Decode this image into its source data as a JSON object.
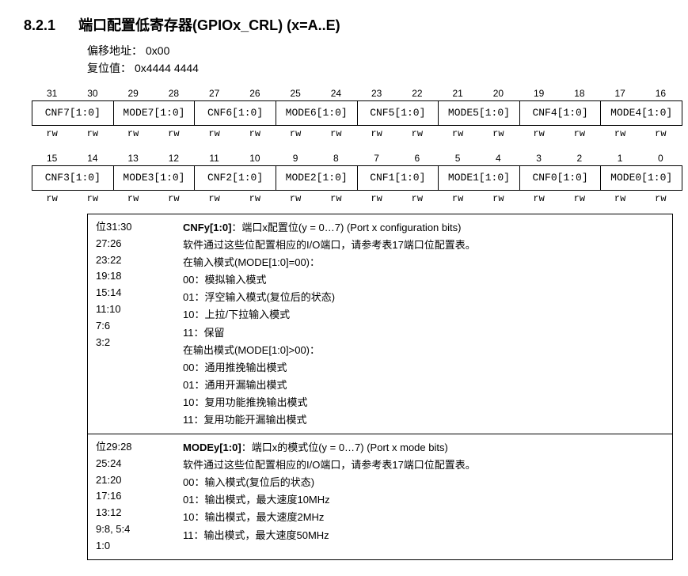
{
  "heading": {
    "number": "8.2.1",
    "title": "端口配置低寄存器(GPIOx_CRL) (x=A..E)"
  },
  "meta": {
    "offset_label": "偏移地址：",
    "offset_value": "0x00",
    "reset_label": "复位值：",
    "reset_value": "0x4444 4444"
  },
  "bitmap_high": {
    "bits": [
      "31",
      "30",
      "29",
      "28",
      "27",
      "26",
      "25",
      "24",
      "23",
      "22",
      "21",
      "20",
      "19",
      "18",
      "17",
      "16"
    ],
    "cells": [
      "CNF7[1:0]",
      "MODE7[1:0]",
      "CNF6[1:0]",
      "MODE6[1:0]",
      "CNF5[1:0]",
      "MODE5[1:0]",
      "CNF4[1:0]",
      "MODE4[1:0]"
    ],
    "rw": [
      "rw",
      "rw",
      "rw",
      "rw",
      "rw",
      "rw",
      "rw",
      "rw",
      "rw",
      "rw",
      "rw",
      "rw",
      "rw",
      "rw",
      "rw",
      "rw"
    ]
  },
  "bitmap_low": {
    "bits": [
      "15",
      "14",
      "13",
      "12",
      "11",
      "10",
      "9",
      "8",
      "7",
      "6",
      "5",
      "4",
      "3",
      "2",
      "1",
      "0"
    ],
    "cells": [
      "CNF3[1:0]",
      "MODE3[1:0]",
      "CNF2[1:0]",
      "MODE2[1:0]",
      "CNF1[1:0]",
      "MODE1[1:0]",
      "CNF0[1:0]",
      "MODE0[1:0]"
    ],
    "rw": [
      "rw",
      "rw",
      "rw",
      "rw",
      "rw",
      "rw",
      "rw",
      "rw",
      "rw",
      "rw",
      "rw",
      "rw",
      "rw",
      "rw",
      "rw",
      "rw"
    ]
  },
  "descriptions": [
    {
      "bits": [
        "位31:30",
        "27:26",
        "23:22",
        "19:18",
        "15:14",
        "11:10",
        "7:6",
        "3:2"
      ],
      "field": "CNFy[1:0]",
      "field_suffix": "：端口x配置位(y = 0…7) (Port x configuration bits)",
      "lines": [
        "软件通过这些位配置相应的I/O端口，请参考表17端口位配置表。",
        "在输入模式(MODE[1:0]=00)：",
        "00：模拟输入模式",
        "01：浮空输入模式(复位后的状态)",
        "10：上拉/下拉输入模式",
        "11：保留",
        "在输出模式(MODE[1:0]>00)：",
        "00：通用推挽输出模式",
        "01：通用开漏输出模式",
        "10：复用功能推挽输出模式",
        "11：复用功能开漏输出模式"
      ]
    },
    {
      "bits": [
        "位29:28",
        "25:24",
        "21:20",
        "17:16",
        "13:12",
        "9:8, 5:4",
        "1:0"
      ],
      "field": "MODEy[1:0]",
      "field_suffix": "：端口x的模式位(y = 0…7) (Port x mode bits)",
      "lines": [
        "软件通过这些位配置相应的I/O端口，请参考表17端口位配置表。",
        "00：输入模式(复位后的状态)",
        "01：输出模式，最大速度10MHz",
        "10：输出模式，最大速度2MHz",
        "11：输出模式，最大速度50MHz"
      ]
    }
  ]
}
